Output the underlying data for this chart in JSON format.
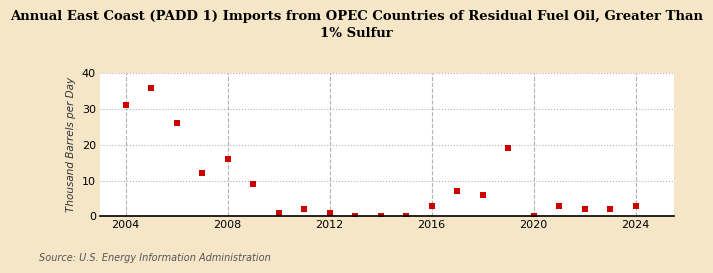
{
  "title": "Annual East Coast (PADD 1) Imports from OPEC Countries of Residual Fuel Oil, Greater Than\n1% Sulfur",
  "ylabel": "Thousand Barrels per Day",
  "source": "Source: U.S. Energy Information Administration",
  "background_color": "#f5e6c8",
  "plot_bg_color": "#ffffff",
  "marker_color": "#cc0000",
  "years": [
    2004,
    2005,
    2006,
    2007,
    2008,
    2009,
    2010,
    2011,
    2012,
    2013,
    2014,
    2015,
    2016,
    2017,
    2018,
    2019,
    2020,
    2021,
    2022,
    2023,
    2024
  ],
  "values": [
    31.0,
    36.0,
    26.0,
    12.0,
    16.0,
    9.0,
    1.0,
    2.0,
    0.8,
    0.1,
    0.1,
    0.1,
    3.0,
    7.0,
    6.0,
    19.0,
    0.1,
    3.0,
    2.0,
    2.0,
    3.0
  ],
  "xlim": [
    2003.0,
    2025.5
  ],
  "ylim": [
    0,
    40
  ],
  "yticks": [
    0,
    10,
    20,
    30,
    40
  ],
  "xticks": [
    2004,
    2008,
    2012,
    2016,
    2020,
    2024
  ],
  "grid_color": "#aaaaaa",
  "title_fontsize": 9.5,
  "label_fontsize": 7.5,
  "tick_fontsize": 8.0,
  "source_fontsize": 7.0
}
